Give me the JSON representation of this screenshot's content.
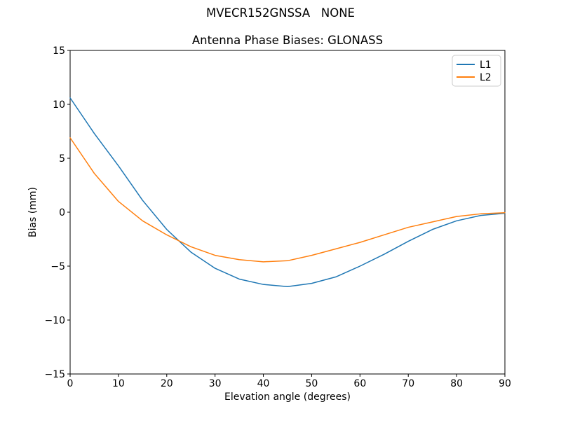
{
  "figure": {
    "suptitle": "MVECR152GNSSA   NONE",
    "background_color": "#ffffff"
  },
  "chart_data": {
    "type": "line",
    "title": "Antenna Phase Biases: GLONASS",
    "xlabel": "Elevation angle (degrees)",
    "ylabel": "Bias (mm)",
    "xlim": [
      0,
      90
    ],
    "ylim": [
      -15,
      15
    ],
    "xticks": [
      0,
      10,
      20,
      30,
      40,
      50,
      60,
      70,
      80,
      90
    ],
    "yticks": [
      -15,
      -10,
      -5,
      0,
      5,
      10,
      15
    ],
    "grid": false,
    "x": [
      0,
      5,
      10,
      15,
      20,
      25,
      30,
      35,
      40,
      45,
      50,
      55,
      60,
      65,
      70,
      75,
      80,
      85,
      90
    ],
    "series": [
      {
        "name": "L1",
        "color": "#1f77b4",
        "values": [
          10.6,
          7.3,
          4.3,
          1.1,
          -1.6,
          -3.7,
          -5.2,
          -6.2,
          -6.7,
          -6.9,
          -6.6,
          -6.0,
          -5.0,
          -3.9,
          -2.7,
          -1.6,
          -0.8,
          -0.3,
          -0.1
        ]
      },
      {
        "name": "L2",
        "color": "#ff7f0e",
        "values": [
          6.9,
          3.6,
          1.0,
          -0.8,
          -2.1,
          -3.2,
          -4.0,
          -4.4,
          -4.6,
          -4.5,
          -4.0,
          -3.4,
          -2.8,
          -2.1,
          -1.4,
          -0.9,
          -0.4,
          -0.15,
          -0.05
        ]
      }
    ],
    "legend": {
      "position": "upper right",
      "entries": [
        "L1",
        "L2"
      ],
      "border_color": "#cccccc"
    },
    "axis_color": "#000000"
  }
}
